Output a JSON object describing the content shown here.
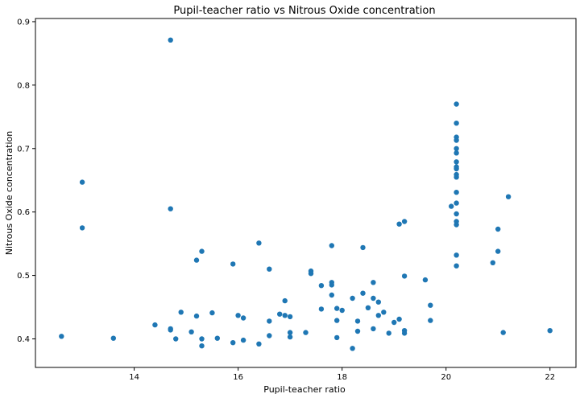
{
  "chart_data": {
    "type": "scatter",
    "title": "Pupil-teacher ratio vs Nitrous Oxide concentration",
    "xlabel": "Pupil-teacher ratio",
    "ylabel": "Nitrous Oxide concentration",
    "xlim": [
      12.1,
      22.5
    ],
    "ylim": [
      0.355,
      0.905
    ],
    "xticks": [
      "14",
      "16",
      "18",
      "20",
      "22"
    ],
    "yticks": [
      "0.4",
      "0.5",
      "0.6",
      "0.7",
      "0.8",
      "0.9"
    ],
    "grid": false,
    "color": "#1f77b4",
    "points": [
      [
        12.6,
        0.404
      ],
      [
        13.0,
        0.647
      ],
      [
        13.0,
        0.575
      ],
      [
        13.6,
        0.401
      ],
      [
        14.4,
        0.422
      ],
      [
        14.7,
        0.871
      ],
      [
        14.7,
        0.605
      ],
      [
        14.7,
        0.416
      ],
      [
        14.7,
        0.414
      ],
      [
        14.8,
        0.4
      ],
      [
        14.9,
        0.442
      ],
      [
        15.1,
        0.411
      ],
      [
        15.2,
        0.524
      ],
      [
        15.2,
        0.436
      ],
      [
        15.3,
        0.538
      ],
      [
        15.3,
        0.4
      ],
      [
        15.3,
        0.389
      ],
      [
        15.5,
        0.441
      ],
      [
        15.6,
        0.401
      ],
      [
        15.9,
        0.518
      ],
      [
        15.9,
        0.394
      ],
      [
        16.0,
        0.437
      ],
      [
        16.1,
        0.433
      ],
      [
        16.1,
        0.398
      ],
      [
        16.4,
        0.551
      ],
      [
        16.4,
        0.392
      ],
      [
        16.6,
        0.51
      ],
      [
        16.6,
        0.428
      ],
      [
        16.6,
        0.405
      ],
      [
        16.8,
        0.439
      ],
      [
        16.9,
        0.46
      ],
      [
        16.9,
        0.437
      ],
      [
        17.0,
        0.435
      ],
      [
        17.0,
        0.41
      ],
      [
        17.0,
        0.403
      ],
      [
        17.3,
        0.41
      ],
      [
        17.4,
        0.507
      ],
      [
        17.4,
        0.503
      ],
      [
        17.6,
        0.484
      ],
      [
        17.6,
        0.447
      ],
      [
        17.8,
        0.547
      ],
      [
        17.8,
        0.489
      ],
      [
        17.8,
        0.485
      ],
      [
        17.8,
        0.469
      ],
      [
        17.9,
        0.448
      ],
      [
        17.9,
        0.429
      ],
      [
        17.9,
        0.402
      ],
      [
        18.0,
        0.445
      ],
      [
        18.2,
        0.464
      ],
      [
        18.2,
        0.385
      ],
      [
        18.3,
        0.428
      ],
      [
        18.3,
        0.412
      ],
      [
        18.4,
        0.544
      ],
      [
        18.4,
        0.472
      ],
      [
        18.5,
        0.449
      ],
      [
        18.6,
        0.489
      ],
      [
        18.6,
        0.464
      ],
      [
        18.6,
        0.416
      ],
      [
        18.7,
        0.458
      ],
      [
        18.7,
        0.437
      ],
      [
        18.8,
        0.442
      ],
      [
        18.9,
        0.409
      ],
      [
        19.0,
        0.426
      ],
      [
        19.1,
        0.581
      ],
      [
        19.1,
        0.431
      ],
      [
        19.2,
        0.585
      ],
      [
        19.2,
        0.499
      ],
      [
        19.2,
        0.413
      ],
      [
        19.2,
        0.409
      ],
      [
        19.6,
        0.493
      ],
      [
        19.7,
        0.453
      ],
      [
        19.7,
        0.429
      ],
      [
        20.1,
        0.609
      ],
      [
        20.2,
        0.77
      ],
      [
        20.2,
        0.74
      ],
      [
        20.2,
        0.718
      ],
      [
        20.2,
        0.713
      ],
      [
        20.2,
        0.7
      ],
      [
        20.2,
        0.693
      ],
      [
        20.2,
        0.679
      ],
      [
        20.2,
        0.671
      ],
      [
        20.2,
        0.668
      ],
      [
        20.2,
        0.659
      ],
      [
        20.2,
        0.655
      ],
      [
        20.2,
        0.631
      ],
      [
        20.2,
        0.614
      ],
      [
        20.2,
        0.597
      ],
      [
        20.2,
        0.585
      ],
      [
        20.2,
        0.58
      ],
      [
        20.2,
        0.532
      ],
      [
        20.2,
        0.515
      ],
      [
        20.9,
        0.52
      ],
      [
        21.0,
        0.573
      ],
      [
        21.0,
        0.538
      ],
      [
        21.1,
        0.41
      ],
      [
        21.2,
        0.624
      ],
      [
        22.0,
        0.413
      ]
    ]
  }
}
